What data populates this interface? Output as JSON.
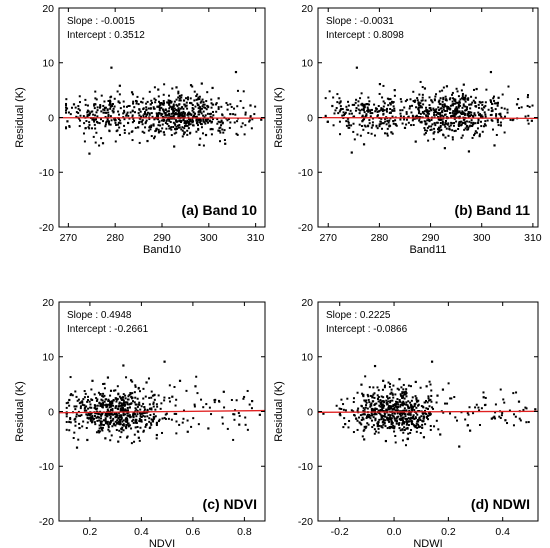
{
  "chart_data": [
    {
      "type": "scatter",
      "panel_label": "(a) Band 10",
      "xlabel": "Band10",
      "ylabel": "Residual (K)",
      "xlim": [
        268,
        312
      ],
      "ylim": [
        -20,
        20
      ],
      "xticks": [
        270,
        280,
        290,
        300,
        310
      ],
      "yticks": [
        -20,
        -10,
        0,
        10,
        20
      ],
      "slope_text": "Slope : -0.0015",
      "intercept_text": "Intercept : 0.3512",
      "fit_line": {
        "slope": -0.0015,
        "intercept": 0.3512
      },
      "fit_line_color": "#e02020",
      "point_color": "#000000",
      "points": [
        [
          279.2,
          9.1
        ],
        [
          305.8,
          8.3
        ],
        [
          274.5,
          -6.6
        ],
        [
          281.0,
          5.8
        ],
        [
          283.6,
          4.6
        ],
        [
          289.2,
          5.1
        ],
        [
          293.1,
          5.5
        ],
        [
          296.2,
          5.9
        ],
        [
          298.5,
          6.2
        ],
        [
          300.8,
          5.4
        ],
        [
          277.4,
          -4.7
        ],
        [
          286.9,
          -4.3
        ],
        [
          292.6,
          -5.3
        ],
        [
          298.0,
          -5.0
        ],
        [
          303.5,
          -4.8
        ],
        [
          271.2,
          2.4
        ],
        [
          308.9,
          2.2
        ],
        [
          311.2,
          -0.4
        ],
        [
          269.8,
          -0.7
        ],
        [
          284.9,
          -1.8
        ],
        [
          287.6,
          2.4
        ],
        [
          290.4,
          -2.7
        ],
        [
          294.7,
          3.1
        ],
        [
          299.4,
          -3.2
        ],
        [
          302.1,
          3.5
        ]
      ]
    },
    {
      "type": "scatter",
      "panel_label": "(b) Band 11",
      "xlabel": "Band11",
      "ylabel": "Residual (K)",
      "xlim": [
        268,
        311
      ],
      "ylim": [
        -20,
        20
      ],
      "xticks": [
        270,
        280,
        290,
        300,
        310
      ],
      "yticks": [
        -20,
        -10,
        0,
        10,
        20
      ],
      "slope_text": "Slope : -0.0031",
      "intercept_text": "Intercept : 0.8098",
      "fit_line": {
        "slope": -0.0031,
        "intercept": 0.8098
      },
      "fit_line_color": "#e02020",
      "point_color": "#000000",
      "points": [
        [
          275.6,
          9.1
        ],
        [
          301.8,
          8.3
        ],
        [
          274.6,
          -6.4
        ],
        [
          280.1,
          6.1
        ],
        [
          283.0,
          5.0
        ],
        [
          288.9,
          5.3
        ],
        [
          293.2,
          5.7
        ],
        [
          296.5,
          6.0
        ],
        [
          299.0,
          5.2
        ],
        [
          277.0,
          -4.9
        ],
        [
          287.1,
          -4.4
        ],
        [
          292.8,
          -5.6
        ],
        [
          297.5,
          -6.2
        ],
        [
          302.5,
          -5.1
        ],
        [
          270.8,
          2.1
        ],
        [
          306.9,
          2.4
        ],
        [
          309.8,
          -0.6
        ],
        [
          269.9,
          -0.8
        ],
        [
          285.0,
          -1.9
        ],
        [
          288.0,
          2.6
        ],
        [
          290.6,
          -2.9
        ],
        [
          294.8,
          3.2
        ],
        [
          299.6,
          -3.4
        ],
        [
          303.3,
          3.6
        ]
      ]
    },
    {
      "type": "scatter",
      "panel_label": "(c) NDVI",
      "xlabel": "NDVI",
      "ylabel": "Residual (K)",
      "xlim": [
        0.08,
        0.88
      ],
      "ylim": [
        -20,
        20
      ],
      "xticks": [
        0.2,
        0.4,
        0.6,
        0.8
      ],
      "yticks": [
        -20,
        -10,
        0,
        10,
        20
      ],
      "slope_text": "Slope : 0.4948",
      "intercept_text": "Intercept : -0.2661",
      "fit_line": {
        "slope": 0.4948,
        "intercept": -0.2661
      },
      "fit_line_color": "#e02020",
      "point_color": "#000000",
      "points": [
        [
          0.49,
          9.1
        ],
        [
          0.33,
          8.4
        ],
        [
          0.15,
          -6.6
        ],
        [
          0.21,
          5.6
        ],
        [
          0.27,
          6.2
        ],
        [
          0.36,
          5.7
        ],
        [
          0.42,
          5.3
        ],
        [
          0.55,
          5.6
        ],
        [
          0.61,
          4.6
        ],
        [
          0.19,
          -5.2
        ],
        [
          0.26,
          -4.9
        ],
        [
          0.31,
          -5.5
        ],
        [
          0.39,
          -4.8
        ],
        [
          0.46,
          -4.3
        ],
        [
          0.58,
          -3.7
        ],
        [
          0.66,
          -3.1
        ],
        [
          0.72,
          3.6
        ],
        [
          0.78,
          -2.4
        ],
        [
          0.83,
          1.9
        ],
        [
          0.86,
          -0.6
        ],
        [
          0.12,
          2.1
        ],
        [
          0.12,
          -1.9
        ],
        [
          0.24,
          3.1
        ],
        [
          0.35,
          -2.2
        ],
        [
          0.52,
          2.7
        ]
      ]
    },
    {
      "type": "scatter",
      "panel_label": "(d) NDWI",
      "xlabel": "NDWI",
      "ylabel": "Residual (K)",
      "xlim": [
        -0.28,
        0.53
      ],
      "ylim": [
        -20,
        20
      ],
      "xticks": [
        -0.2,
        0.0,
        0.2,
        0.4
      ],
      "xtick_labels": [
        "-0.2",
        "0.0",
        "0.2",
        "0.4"
      ],
      "yticks": [
        -20,
        -10,
        0,
        10,
        20
      ],
      "slope_text": "Slope : 0.2225",
      "intercept_text": "Intercept : -0.0866",
      "fit_line": {
        "slope": 0.2225,
        "intercept": -0.0866
      },
      "fit_line_color": "#e02020",
      "point_color": "#000000",
      "points": [
        [
          0.14,
          9.1
        ],
        [
          -0.07,
          8.3
        ],
        [
          -0.18,
          -2.3
        ],
        [
          -0.12,
          4.9
        ],
        [
          -0.04,
          5.6
        ],
        [
          0.02,
          5.9
        ],
        [
          0.08,
          5.4
        ],
        [
          0.12,
          4.6
        ],
        [
          0.18,
          4.0
        ],
        [
          -0.11,
          -5.1
        ],
        [
          -0.03,
          -5.4
        ],
        [
          0.05,
          -5.0
        ],
        [
          0.11,
          -4.7
        ],
        [
          0.17,
          -4.2
        ],
        [
          0.24,
          -6.4
        ],
        [
          0.28,
          -3.5
        ],
        [
          0.33,
          2.6
        ],
        [
          0.41,
          -1.6
        ],
        [
          0.46,
          1.8
        ],
        [
          0.52,
          0.4
        ],
        [
          -0.26,
          -0.4
        ],
        [
          -0.08,
          2.6
        ],
        [
          0.01,
          -2.2
        ],
        [
          0.16,
          2.9
        ],
        [
          0.36,
          -1.3
        ]
      ]
    }
  ]
}
